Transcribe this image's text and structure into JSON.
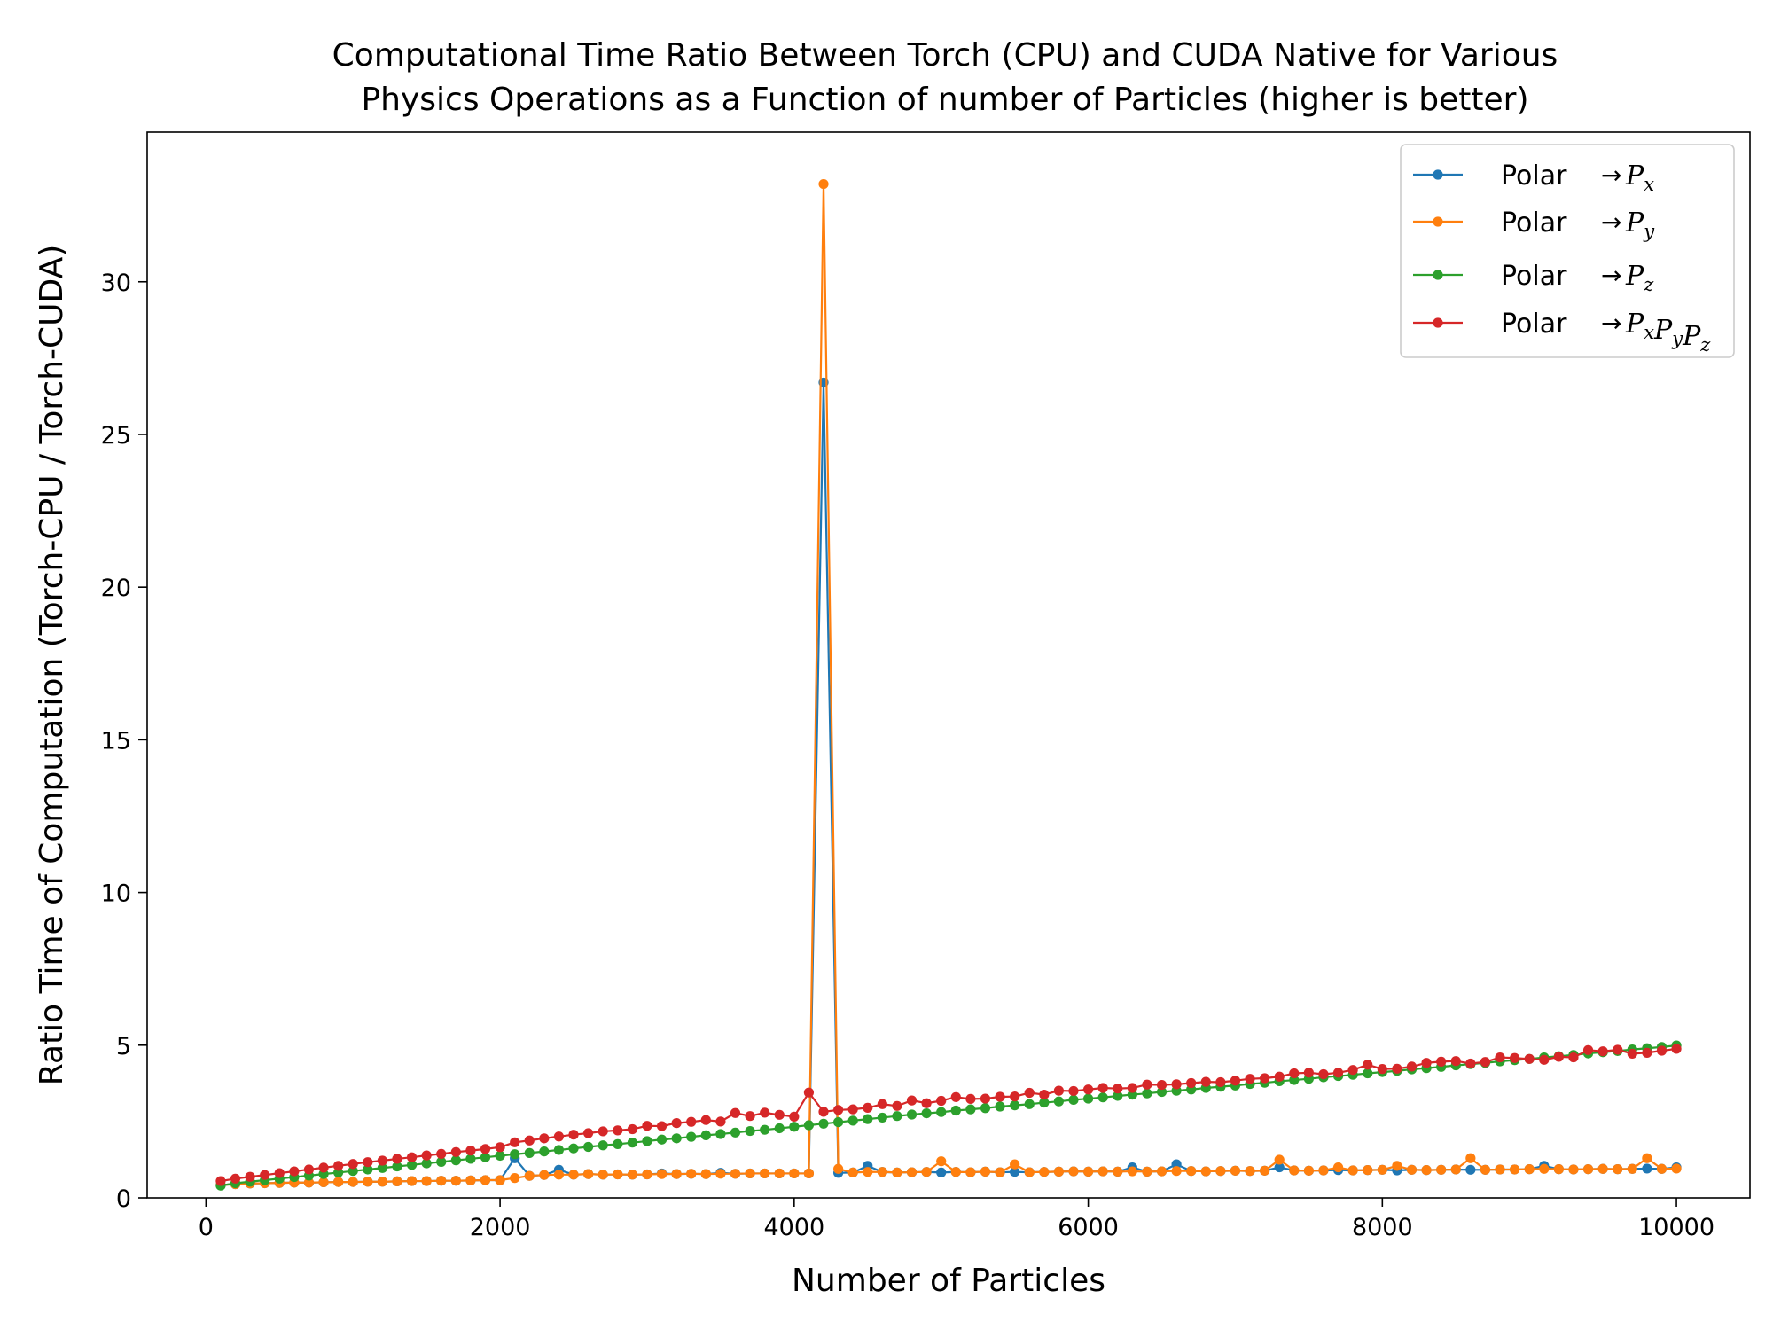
{
  "chart_data": {
    "type": "line",
    "title_lines": [
      "Computational Time Ratio Between Torch (CPU) and CUDA Native for Various",
      "Physics Operations as a Function of number of Particles (higher is better)"
    ],
    "xlabel": "Number of Particles",
    "ylabel": "Ratio Time of Computation (Torch-CPU / Torch-CUDA)",
    "xlim": [
      -400,
      10500
    ],
    "ylim": [
      0,
      34.9
    ],
    "xticks": [
      0,
      2000,
      4000,
      6000,
      8000,
      10000
    ],
    "yticks": [
      0,
      5,
      10,
      15,
      20,
      25,
      30
    ],
    "grid": false,
    "legend_position": "top-right",
    "x": [
      100,
      200,
      300,
      400,
      500,
      600,
      700,
      800,
      900,
      1000,
      1100,
      1200,
      1300,
      1400,
      1500,
      1600,
      1700,
      1800,
      1900,
      2000,
      2100,
      2200,
      2300,
      2400,
      2500,
      2600,
      2700,
      2800,
      2900,
      3000,
      3100,
      3200,
      3300,
      3400,
      3500,
      3600,
      3700,
      3800,
      3900,
      4000,
      4100,
      4200,
      4300,
      4400,
      4500,
      4600,
      4700,
      4800,
      4900,
      5000,
      5100,
      5200,
      5300,
      5400,
      5500,
      5600,
      5700,
      5800,
      5900,
      6000,
      6100,
      6200,
      6300,
      6400,
      6500,
      6600,
      6700,
      6800,
      6900,
      7000,
      7100,
      7200,
      7300,
      7400,
      7500,
      7600,
      7700,
      7800,
      7900,
      8000,
      8100,
      8200,
      8300,
      8400,
      8500,
      8600,
      8700,
      8800,
      8900,
      9000,
      9100,
      9200,
      9300,
      9400,
      9500,
      9600,
      9700,
      9800,
      9900,
      10000
    ],
    "series": [
      {
        "name": "Polar",
        "math": {
          "base": "P",
          "subs": [
            "x"
          ]
        },
        "color": "#1f77b4",
        "values": [
          0.42,
          0.45,
          0.47,
          0.48,
          0.49,
          0.5,
          0.5,
          0.51,
          0.52,
          0.52,
          0.53,
          0.53,
          0.54,
          0.55,
          0.55,
          0.56,
          0.56,
          0.57,
          0.58,
          0.58,
          1.3,
          0.72,
          0.75,
          0.92,
          0.76,
          0.78,
          0.76,
          0.77,
          0.76,
          0.77,
          0.8,
          0.78,
          0.79,
          0.78,
          0.82,
          0.79,
          0.8,
          0.8,
          0.8,
          0.8,
          0.8,
          26.7,
          0.82,
          0.83,
          1.05,
          0.85,
          0.83,
          0.84,
          0.85,
          0.83,
          0.85,
          0.84,
          0.86,
          0.84,
          0.85,
          0.84,
          0.85,
          0.86,
          0.87,
          0.86,
          0.87,
          0.86,
          1.0,
          0.86,
          0.87,
          1.1,
          0.88,
          0.87,
          0.88,
          0.89,
          0.88,
          0.89,
          1.0,
          0.9,
          0.89,
          0.9,
          0.91,
          0.9,
          0.91,
          0.92,
          0.9,
          0.92,
          0.91,
          0.92,
          0.93,
          0.92,
          0.92,
          0.93,
          0.93,
          0.94,
          1.05,
          0.94,
          0.93,
          0.94,
          0.95,
          0.94,
          0.95,
          0.96,
          0.95,
          1.0
        ]
      },
      {
        "name": "Polar",
        "math": {
          "base": "P",
          "subs": [
            "y"
          ]
        },
        "color": "#ff7f0e",
        "values": [
          0.42,
          0.45,
          0.47,
          0.48,
          0.49,
          0.5,
          0.5,
          0.51,
          0.52,
          0.52,
          0.53,
          0.53,
          0.54,
          0.55,
          0.55,
          0.56,
          0.56,
          0.57,
          0.58,
          0.58,
          0.65,
          0.72,
          0.75,
          0.76,
          0.76,
          0.78,
          0.76,
          0.77,
          0.76,
          0.77,
          0.78,
          0.78,
          0.79,
          0.78,
          0.79,
          0.79,
          0.8,
          0.8,
          0.8,
          0.8,
          0.8,
          33.2,
          0.95,
          0.83,
          0.85,
          0.85,
          0.83,
          0.84,
          0.85,
          1.2,
          0.85,
          0.84,
          0.86,
          0.84,
          1.1,
          0.84,
          0.85,
          0.86,
          0.87,
          0.86,
          0.87,
          0.86,
          0.87,
          0.86,
          0.87,
          0.88,
          0.88,
          0.87,
          0.88,
          0.89,
          0.88,
          0.89,
          1.25,
          0.9,
          0.89,
          0.9,
          1.0,
          0.9,
          0.91,
          0.92,
          1.05,
          0.92,
          0.91,
          0.92,
          0.93,
          1.3,
          0.92,
          0.93,
          0.93,
          0.94,
          0.95,
          0.94,
          0.93,
          0.94,
          0.95,
          0.94,
          0.95,
          1.3,
          0.95,
          0.96
        ]
      },
      {
        "name": "Polar",
        "math": {
          "base": "P",
          "subs": [
            "z"
          ]
        },
        "color": "#2ca02c",
        "values": [
          0.4,
          0.48,
          0.53,
          0.58,
          0.63,
          0.68,
          0.73,
          0.78,
          0.83,
          0.88,
          0.93,
          0.98,
          1.03,
          1.08,
          1.13,
          1.18,
          1.23,
          1.28,
          1.33,
          1.38,
          1.43,
          1.47,
          1.52,
          1.57,
          1.62,
          1.67,
          1.72,
          1.76,
          1.81,
          1.86,
          1.91,
          1.95,
          2.0,
          2.05,
          2.09,
          2.14,
          2.19,
          2.23,
          2.28,
          2.33,
          2.38,
          2.43,
          2.48,
          2.53,
          2.58,
          2.63,
          2.68,
          2.73,
          2.77,
          2.81,
          2.86,
          2.9,
          2.94,
          2.99,
          3.03,
          3.07,
          3.12,
          3.16,
          3.21,
          3.25,
          3.29,
          3.34,
          3.38,
          3.42,
          3.47,
          3.51,
          3.55,
          3.6,
          3.64,
          3.68,
          3.73,
          3.77,
          3.82,
          3.86,
          3.9,
          3.95,
          3.99,
          4.03,
          4.08,
          4.12,
          4.16,
          4.21,
          4.25,
          4.29,
          4.34,
          4.38,
          4.42,
          4.47,
          4.51,
          4.55,
          4.6,
          4.64,
          4.68,
          4.73,
          4.77,
          4.81,
          4.86,
          4.9,
          4.94,
          4.99
        ]
      },
      {
        "name": "Polar",
        "math": {
          "base": "P",
          "subs": [
            "x",
            "y",
            "z"
          ]
        },
        "color": "#d62728",
        "values": [
          0.55,
          0.63,
          0.69,
          0.75,
          0.81,
          0.87,
          0.93,
          0.99,
          1.05,
          1.11,
          1.17,
          1.22,
          1.28,
          1.33,
          1.39,
          1.44,
          1.5,
          1.55,
          1.6,
          1.66,
          1.82,
          1.88,
          1.95,
          2.01,
          2.07,
          2.12,
          2.18,
          2.21,
          2.25,
          2.36,
          2.35,
          2.45,
          2.49,
          2.55,
          2.5,
          2.78,
          2.68,
          2.79,
          2.72,
          2.66,
          3.45,
          2.82,
          2.88,
          2.9,
          2.95,
          3.07,
          3.01,
          3.19,
          3.1,
          3.18,
          3.3,
          3.24,
          3.25,
          3.31,
          3.32,
          3.44,
          3.38,
          3.51,
          3.5,
          3.55,
          3.6,
          3.58,
          3.6,
          3.71,
          3.7,
          3.72,
          3.76,
          3.8,
          3.79,
          3.84,
          3.9,
          3.92,
          3.97,
          4.08,
          4.1,
          4.05,
          4.1,
          4.19,
          4.36,
          4.22,
          4.23,
          4.3,
          4.42,
          4.46,
          4.48,
          4.4,
          4.45,
          4.6,
          4.58,
          4.55,
          4.52,
          4.62,
          4.6,
          4.84,
          4.8,
          4.85,
          4.72,
          4.75,
          4.82,
          4.88
        ]
      }
    ]
  }
}
